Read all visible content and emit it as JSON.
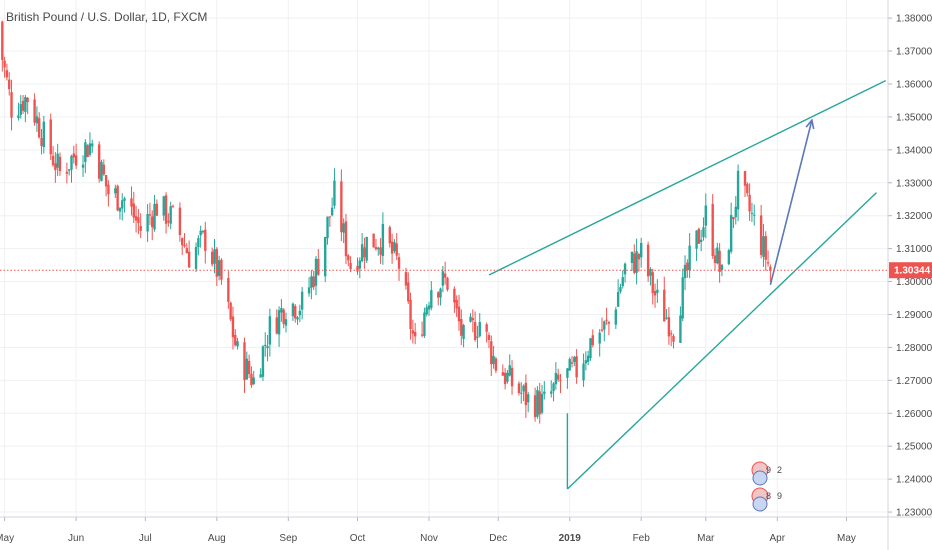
{
  "chart_data": {
    "type": "candlestick",
    "title": "British Pound / U.S. Dollar, 1D, FXCM",
    "instrument": "British Pound / U.S. Dollar",
    "interval": "1D",
    "source": "FXCM",
    "ylim": [
      1.2285,
      1.3855
    ],
    "y_ticks": [
      {
        "value": 1.38,
        "label": "1.38000"
      },
      {
        "value": 1.37,
        "label": "1.37000"
      },
      {
        "value": 1.36,
        "label": "1.36000"
      },
      {
        "value": 1.35,
        "label": "1.35000"
      },
      {
        "value": 1.34,
        "label": "1.34000"
      },
      {
        "value": 1.33,
        "label": "1.33000"
      },
      {
        "value": 1.32,
        "label": "1.32000"
      },
      {
        "value": 1.31,
        "label": "1.31000"
      },
      {
        "value": 1.3,
        "label": "1.30000"
      },
      {
        "value": 1.29,
        "label": "1.29000"
      },
      {
        "value": 1.28,
        "label": "1.28000"
      },
      {
        "value": 1.27,
        "label": "1.27000"
      },
      {
        "value": 1.26,
        "label": "1.26000"
      },
      {
        "value": 1.25,
        "label": "1.25000"
      },
      {
        "value": 1.24,
        "label": "1.24000"
      },
      {
        "value": 1.23,
        "label": "1.23000"
      }
    ],
    "x_ticks": [
      {
        "date": "2018-05-01",
        "label": "May"
      },
      {
        "date": "2018-06-01",
        "label": "Jun"
      },
      {
        "date": "2018-07-01",
        "label": "Jul"
      },
      {
        "date": "2018-08-01",
        "label": "Aug"
      },
      {
        "date": "2018-09-01",
        "label": "Sep"
      },
      {
        "date": "2018-10-01",
        "label": "Oct"
      },
      {
        "date": "2018-11-01",
        "label": "Nov"
      },
      {
        "date": "2018-12-01",
        "label": "Dec"
      },
      {
        "date": "2019-01-01",
        "label": "2019",
        "bold": true
      },
      {
        "date": "2019-02-01",
        "label": "Feb"
      },
      {
        "date": "2019-03-01",
        "label": "Mar"
      },
      {
        "date": "2019-04-01",
        "label": "Apr"
      },
      {
        "date": "2019-05-01",
        "label": "May"
      }
    ],
    "x_range": [
      "2018-04-29",
      "2019-05-19"
    ],
    "current_price": {
      "value": 1.30344,
      "label": "1.30344"
    },
    "grid": true,
    "colors": {
      "up": "#26a69a",
      "down": "#ef5350",
      "trendline": "#26a69a",
      "arrow": "#5b78b8",
      "price_line": "#ef5350",
      "grid": "#eef0f3"
    },
    "candles_close_path": [
      [
        "2018-04-27",
        1.379
      ],
      [
        "2018-05-04",
        1.353
      ],
      [
        "2018-05-11",
        1.356
      ],
      [
        "2018-05-18",
        1.344
      ],
      [
        "2018-05-25",
        1.333
      ],
      [
        "2018-06-01",
        1.339
      ],
      [
        "2018-06-08",
        1.342
      ],
      [
        "2018-06-15",
        1.327
      ],
      [
        "2018-06-22",
        1.325
      ],
      [
        "2018-06-29",
        1.316
      ],
      [
        "2018-07-06",
        1.323
      ],
      [
        "2018-07-13",
        1.319
      ],
      [
        "2018-07-20",
        1.308
      ],
      [
        "2018-07-27",
        1.313
      ],
      [
        "2018-08-03",
        1.3
      ],
      [
        "2018-08-10",
        1.278
      ],
      [
        "2018-08-17",
        1.27
      ],
      [
        "2018-08-24",
        1.286
      ],
      [
        "2018-08-31",
        1.293
      ],
      [
        "2018-09-07",
        1.293
      ],
      [
        "2018-09-14",
        1.306
      ],
      [
        "2018-09-21",
        1.326
      ],
      [
        "2018-09-28",
        1.305
      ],
      [
        "2018-10-05",
        1.312
      ],
      [
        "2018-10-12",
        1.313
      ],
      [
        "2018-10-19",
        1.305
      ],
      [
        "2018-10-26",
        1.28
      ],
      [
        "2018-11-02",
        1.299
      ],
      [
        "2018-11-09",
        1.3
      ],
      [
        "2018-11-16",
        1.282
      ],
      [
        "2018-11-23",
        1.288
      ],
      [
        "2018-11-30",
        1.275
      ],
      [
        "2018-12-07",
        1.269
      ],
      [
        "2018-12-14",
        1.264
      ],
      [
        "2018-12-21",
        1.263
      ],
      [
        "2018-12-28",
        1.27
      ],
      [
        "2019-01-04",
        1.273
      ],
      [
        "2019-01-11",
        1.283
      ],
      [
        "2019-01-18",
        1.287
      ],
      [
        "2019-01-25",
        1.304
      ],
      [
        "2019-02-01",
        1.308
      ],
      [
        "2019-02-08",
        1.294
      ],
      [
        "2019-02-15",
        1.286
      ],
      [
        "2019-02-22",
        1.306
      ],
      [
        "2019-03-01",
        1.32
      ],
      [
        "2019-03-08",
        1.301
      ],
      [
        "2019-03-15",
        1.329
      ],
      [
        "2019-03-22",
        1.318
      ],
      [
        "2019-03-29",
        1.3034
      ]
    ],
    "trendlines": [
      {
        "name": "upper-channel",
        "from": [
          "2018-11-27",
          1.302
        ],
        "to": [
          "2019-05-18",
          1.361
        ]
      },
      {
        "name": "lower-channel",
        "from": [
          "2018-12-31",
          1.237
        ],
        "to": [
          "2019-05-14",
          1.327
        ]
      },
      {
        "name": "vertical-leg",
        "from": [
          "2018-12-31",
          1.237
        ],
        "to": [
          "2018-12-31",
          1.26
        ]
      }
    ],
    "arrow": {
      "from": [
        "2019-03-29",
        1.299
      ],
      "to": [
        "2019-04-16",
        1.349
      ]
    },
    "event_markers": {
      "row1": [
        "9",
        "2"
      ],
      "row2": [
        "8",
        "9"
      ]
    }
  }
}
